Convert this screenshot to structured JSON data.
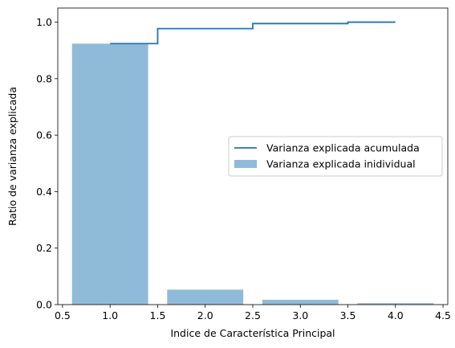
{
  "chart_data": {
    "type": "bar",
    "xlabel": "Indice de Característica Principal",
    "ylabel": "Ratio de varianza explicada",
    "xlim": [
      0.45,
      4.55
    ],
    "ylim": [
      0.0,
      1.05
    ],
    "x_ticks": [
      0.5,
      1.0,
      1.5,
      2.0,
      2.5,
      3.0,
      3.5,
      4.0,
      4.5
    ],
    "x_tick_labels": [
      "0.5",
      "1.0",
      "1.5",
      "2.0",
      "2.5",
      "3.0",
      "3.5",
      "4.0",
      "4.5"
    ],
    "y_ticks": [
      0.0,
      0.2,
      0.4,
      0.6,
      0.8,
      1.0
    ],
    "y_tick_labels": [
      "0.0",
      "0.2",
      "0.4",
      "0.6",
      "0.8",
      "1.0"
    ],
    "grid": false,
    "legend_position": "center-right",
    "series": [
      {
        "name": "Varianza explicada inidividual",
        "kind": "bar",
        "color": "#1f77b4",
        "alpha": 0.5,
        "x": [
          1,
          2,
          3,
          4
        ],
        "values": [
          0.924,
          0.053,
          0.017,
          0.005
        ]
      },
      {
        "name": "Varianza explicada acumulada",
        "kind": "step",
        "step_where": "mid",
        "color": "#1f77b4",
        "x": [
          1,
          2,
          3,
          4
        ],
        "values": [
          0.924,
          0.977,
          0.995,
          1.0
        ]
      }
    ]
  }
}
